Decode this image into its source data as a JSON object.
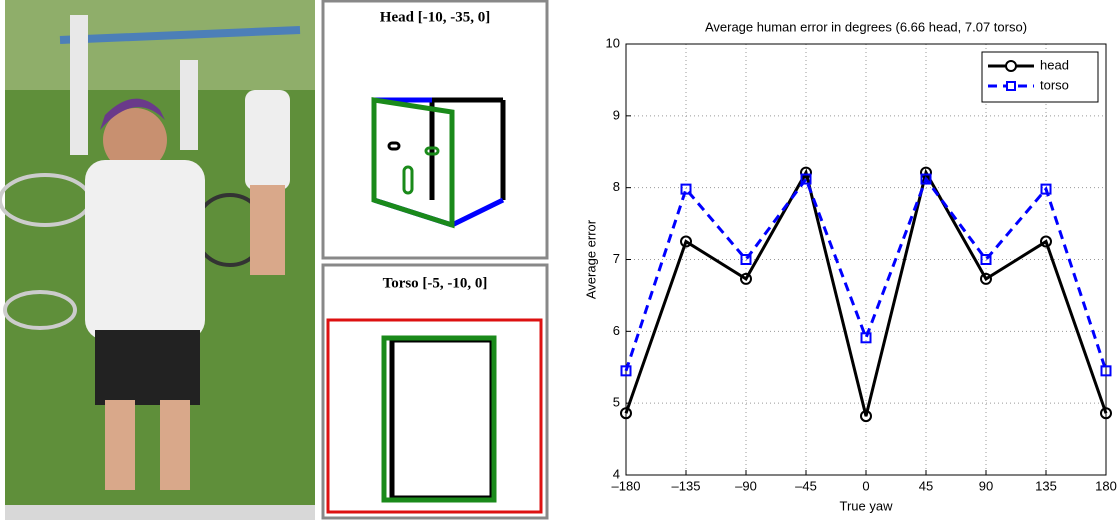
{
  "head_panel": {
    "title": "Head [-10, -35, 0]"
  },
  "torso_panel": {
    "title": "Torso [-5, -10, 0]"
  },
  "chart_data": {
    "type": "line",
    "title": "Average human error in degrees (6.66 head, 7.07 torso)",
    "xlabel": "True yaw",
    "ylabel": "Average error",
    "x": [
      -180,
      -135,
      -90,
      -45,
      0,
      45,
      90,
      135,
      180
    ],
    "series": [
      {
        "name": "head",
        "color": "#000000",
        "marker": "circle",
        "dashed": false,
        "values": [
          4.86,
          7.25,
          6.73,
          8.21,
          4.82,
          8.21,
          6.73,
          7.25,
          4.86
        ]
      },
      {
        "name": "torso",
        "color": "#0000ff",
        "marker": "square",
        "dashed": true,
        "values": [
          5.45,
          7.98,
          7.0,
          8.12,
          5.91,
          8.12,
          7.0,
          7.98,
          5.45
        ]
      }
    ],
    "xlim": [
      -180,
      180
    ],
    "xticks": [
      {
        "value": -180,
        "label": "–180"
      },
      {
        "value": -135,
        "label": "–135"
      },
      {
        "value": -90,
        "label": "–90"
      },
      {
        "value": -45,
        "label": "–45"
      },
      0,
      45,
      90,
      135,
      180
    ],
    "ylim": [
      4,
      10
    ],
    "yticks": [
      4,
      5,
      6,
      7,
      8,
      9,
      10
    ],
    "grid": true,
    "legend": "upper right"
  }
}
